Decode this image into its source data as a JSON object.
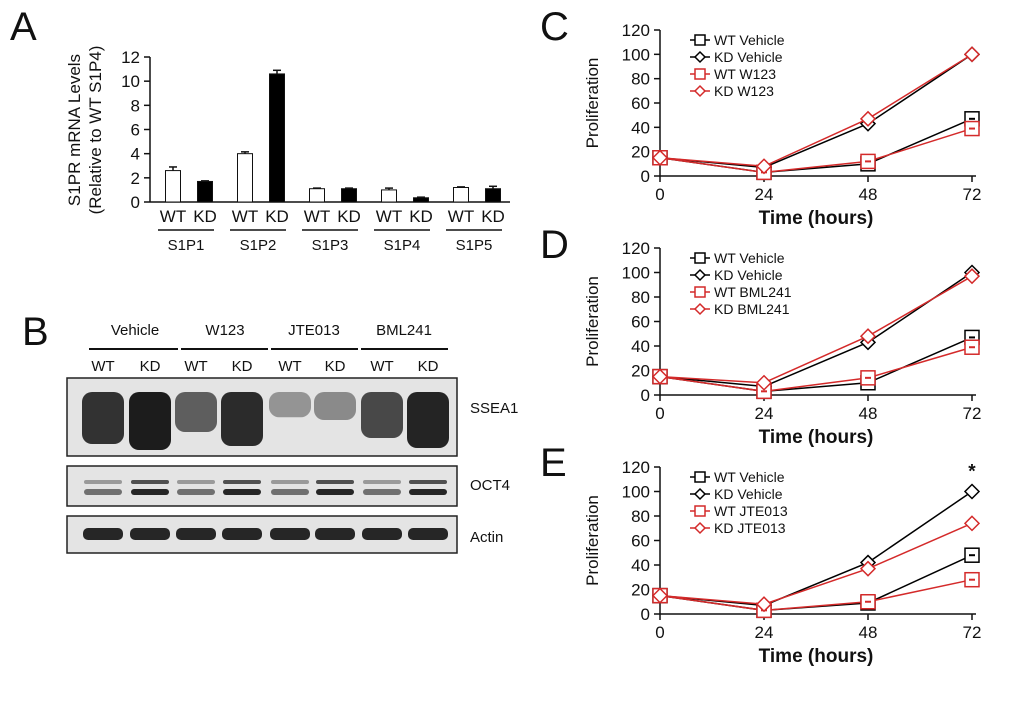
{
  "chart_data": [
    {
      "panel": "A",
      "type": "bar",
      "ylabel": "S1PR mRNA Levels",
      "ylabel2": "(Relative to WT S1P4)",
      "ylim": [
        0,
        12
      ],
      "yticks": [
        0,
        2,
        4,
        6,
        8,
        10,
        12
      ],
      "groups": [
        "S1P1",
        "S1P2",
        "S1P3",
        "S1P4",
        "S1P5"
      ],
      "bar_labels": [
        "WT",
        "KD"
      ],
      "colors": {
        "WT": "#ffffff",
        "KD": "#000000"
      },
      "series": [
        {
          "name": "WT",
          "values": [
            2.6,
            4.0,
            1.1,
            1.0,
            1.2
          ],
          "errors": [
            0.3,
            0.15,
            0.05,
            0.15,
            0.05
          ]
        },
        {
          "name": "KD",
          "values": [
            1.7,
            10.6,
            1.1,
            0.35,
            1.1
          ],
          "errors": [
            0.05,
            0.3,
            0.05,
            0.05,
            0.2
          ]
        }
      ]
    },
    {
      "panel": "C",
      "type": "line",
      "ylabel": "Proliferation",
      "xlabel": "Time (hours)",
      "x": [
        0,
        24,
        48,
        72
      ],
      "ylim": [
        0,
        120
      ],
      "yticks": [
        0,
        20,
        40,
        60,
        80,
        100,
        120
      ],
      "series": [
        {
          "name": "WT Vehicle",
          "color": "#000000",
          "marker": "square",
          "values": [
            15,
            3,
            10,
            47
          ],
          "errors": [
            0,
            0,
            0,
            0
          ]
        },
        {
          "name": "KD Vehicle",
          "color": "#000000",
          "marker": "diamond",
          "values": [
            15,
            7,
            43,
            100
          ],
          "errors": [
            0,
            0,
            0,
            4
          ]
        },
        {
          "name": "WT W123",
          "color": "#d42a2a",
          "marker": "square",
          "values": [
            15,
            3,
            12,
            39
          ],
          "errors": [
            0,
            0,
            0,
            0
          ]
        },
        {
          "name": "KD W123",
          "color": "#d42a2a",
          "marker": "diamond",
          "values": [
            15,
            8,
            47,
            100
          ],
          "errors": [
            0,
            0,
            0,
            4
          ]
        }
      ]
    },
    {
      "panel": "D",
      "type": "line",
      "ylabel": "Proliferation",
      "xlabel": "Time (hours)",
      "x": [
        0,
        24,
        48,
        72
      ],
      "ylim": [
        0,
        120
      ],
      "yticks": [
        0,
        20,
        40,
        60,
        80,
        100,
        120
      ],
      "series": [
        {
          "name": "WT Vehicle",
          "color": "#000000",
          "marker": "square",
          "values": [
            15,
            3,
            10,
            47
          ],
          "errors": [
            0,
            0,
            0,
            0
          ]
        },
        {
          "name": "KD Vehicle",
          "color": "#000000",
          "marker": "diamond",
          "values": [
            15,
            7,
            43,
            100
          ],
          "errors": [
            0,
            0,
            0,
            5
          ]
        },
        {
          "name": "WT BML241",
          "color": "#d42a2a",
          "marker": "square",
          "values": [
            15,
            3,
            14,
            39
          ],
          "errors": [
            0,
            0,
            0,
            0
          ]
        },
        {
          "name": "KD BML241",
          "color": "#d42a2a",
          "marker": "diamond",
          "values": [
            15,
            10,
            48,
            97
          ],
          "errors": [
            0,
            0,
            0,
            4
          ]
        }
      ]
    },
    {
      "panel": "E",
      "type": "line",
      "ylabel": "Proliferation",
      "xlabel": "Time (hours)",
      "x": [
        0,
        24,
        48,
        72
      ],
      "ylim": [
        0,
        120
      ],
      "yticks": [
        0,
        20,
        40,
        60,
        80,
        100,
        120
      ],
      "annotation": "*",
      "series": [
        {
          "name": "WT Vehicle",
          "color": "#000000",
          "marker": "square",
          "values": [
            15,
            3,
            9,
            48
          ],
          "errors": [
            0,
            0,
            0,
            0
          ]
        },
        {
          "name": "KD Vehicle",
          "color": "#000000",
          "marker": "diamond",
          "values": [
            15,
            7,
            42,
            100
          ],
          "errors": [
            0,
            0,
            0,
            4
          ]
        },
        {
          "name": "WT JTE013",
          "color": "#d42a2a",
          "marker": "square",
          "values": [
            15,
            3,
            10,
            28
          ],
          "errors": [
            0,
            0,
            0,
            0
          ]
        },
        {
          "name": "KD JTE013",
          "color": "#d42a2a",
          "marker": "diamond",
          "values": [
            15,
            8,
            37,
            74
          ],
          "errors": [
            0,
            0,
            5,
            4
          ]
        }
      ]
    }
  ],
  "western": {
    "panel": "B",
    "treatments": [
      "Vehicle",
      "W123",
      "JTE013",
      "BML241"
    ],
    "lanes": [
      "WT",
      "KD",
      "WT",
      "KD",
      "WT",
      "KD",
      "WT",
      "KD"
    ],
    "bands": [
      "SSEA1",
      "OCT4",
      "Actin"
    ]
  }
}
